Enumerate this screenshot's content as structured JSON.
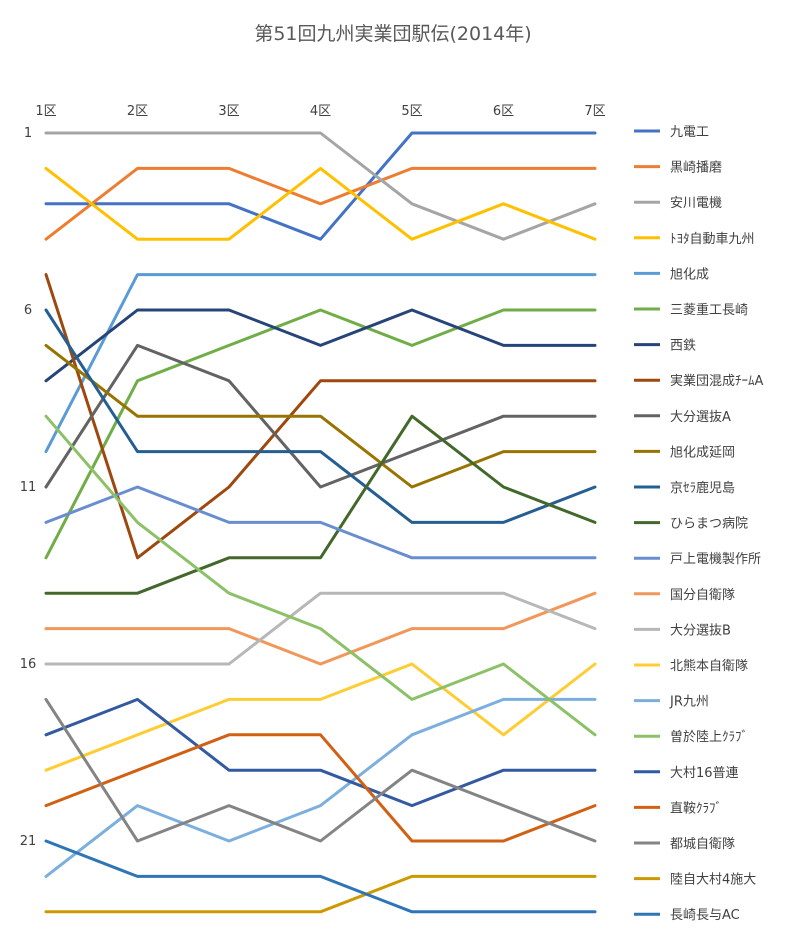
{
  "chart_data": {
    "type": "line",
    "title": "第51回九州実業団駅伝(2014年)",
    "categories": [
      "1区",
      "2区",
      "3区",
      "4区",
      "5区",
      "6区",
      "7区"
    ],
    "y_ticks": [
      "1",
      "6",
      "11",
      "16",
      "21"
    ],
    "ylim": [
      1,
      23
    ],
    "y_reversed": true,
    "grid": false,
    "legend_position": "right",
    "series": [
      {
        "name": "九電工",
        "color": "#4472C4",
        "values": [
          3,
          3,
          3,
          4,
          1,
          1,
          1
        ]
      },
      {
        "name": "黒崎播磨",
        "color": "#ED7D31",
        "values": [
          4,
          2,
          2,
          3,
          2,
          2,
          2
        ]
      },
      {
        "name": "安川電機",
        "color": "#A5A5A5",
        "values": [
          1,
          1,
          1,
          1,
          3,
          4,
          3
        ]
      },
      {
        "name": "ﾄﾖﾀ自動車九州",
        "color": "#FFC000",
        "values": [
          2,
          4,
          4,
          2,
          4,
          3,
          4
        ]
      },
      {
        "name": "旭化成",
        "color": "#5B9BD5",
        "values": [
          10,
          5,
          5,
          5,
          5,
          5,
          5
        ]
      },
      {
        "name": "三菱重工長崎",
        "color": "#70AD47",
        "values": [
          13,
          8,
          7,
          6,
          7,
          6,
          6
        ]
      },
      {
        "name": "西鉄",
        "color": "#264478",
        "values": [
          8,
          6,
          6,
          7,
          6,
          7,
          7
        ]
      },
      {
        "name": "実業団混成ﾁｰﾑA",
        "color": "#9E480E",
        "values": [
          5,
          13,
          11,
          8,
          8,
          8,
          8
        ]
      },
      {
        "name": "大分選抜A",
        "color": "#636363",
        "values": [
          11,
          7,
          8,
          11,
          10,
          9,
          9
        ]
      },
      {
        "name": "旭化成延岡",
        "color": "#997300",
        "values": [
          7,
          9,
          9,
          9,
          11,
          10,
          10
        ]
      },
      {
        "name": "京ｾﾗ鹿児島",
        "color": "#255E91",
        "values": [
          6,
          10,
          10,
          10,
          12,
          12,
          11
        ]
      },
      {
        "name": "ひらまつ病院",
        "color": "#43682B",
        "values": [
          14,
          14,
          13,
          13,
          9,
          11,
          12
        ]
      },
      {
        "name": "戸上電機製作所",
        "color": "#698ED0",
        "values": [
          12,
          11,
          12,
          12,
          13,
          13,
          13
        ]
      },
      {
        "name": "国分自衛隊",
        "color": "#F1975A",
        "values": [
          15,
          15,
          15,
          16,
          15,
          15,
          14
        ]
      },
      {
        "name": "大分選抜B",
        "color": "#B7B7B7",
        "values": [
          16,
          16,
          16,
          14,
          14,
          14,
          15
        ]
      },
      {
        "name": "北熊本自衛隊",
        "color": "#FFCD33",
        "values": [
          19,
          18,
          17,
          17,
          16,
          18,
          16
        ]
      },
      {
        "name": "JR九州",
        "color": "#7CAFDD",
        "values": [
          22,
          20,
          21,
          20,
          18,
          17,
          17
        ]
      },
      {
        "name": "曽於陸上ｸﾗﾌﾞ",
        "color": "#8CC168",
        "values": [
          9,
          12,
          14,
          15,
          17,
          16,
          18
        ]
      },
      {
        "name": "大村16普連",
        "color": "#335AA1",
        "values": [
          18,
          17,
          19,
          19,
          20,
          19,
          19
        ]
      },
      {
        "name": "直鞍ｸﾗﾌﾞ",
        "color": "#D26012",
        "values": [
          20,
          19,
          18,
          18,
          21,
          21,
          20
        ]
      },
      {
        "name": "都城自衛隊",
        "color": "#848484",
        "values": [
          17,
          21,
          20,
          21,
          19,
          20,
          21
        ]
      },
      {
        "name": "陸自大村4施大",
        "color": "#CC9A00",
        "values": [
          23,
          23,
          23,
          23,
          22,
          22,
          22
        ]
      },
      {
        "name": "長崎長与AC",
        "color": "#2E75B6",
        "values": [
          21,
          22,
          22,
          22,
          23,
          23,
          23
        ]
      }
    ]
  }
}
